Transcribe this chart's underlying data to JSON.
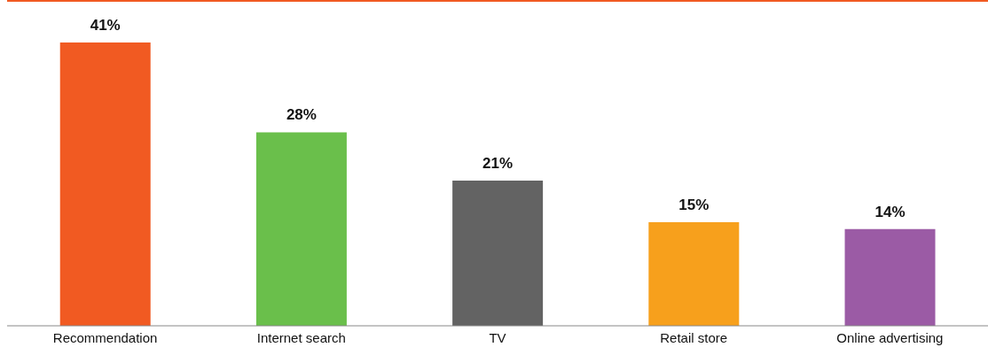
{
  "chart_data": {
    "type": "bar",
    "categories": [
      "Recommendation",
      "Internet search",
      "TV",
      "Retail store",
      "Online advertising"
    ],
    "values": [
      41,
      28,
      21,
      15,
      14
    ],
    "colors": [
      "#f15a22",
      "#6abf4b",
      "#636363",
      "#f7a01c",
      "#9b5ba5"
    ],
    "value_labels": [
      "41%",
      "28%",
      "21%",
      "15%",
      "14%"
    ],
    "grid": false,
    "legend": false
  }
}
